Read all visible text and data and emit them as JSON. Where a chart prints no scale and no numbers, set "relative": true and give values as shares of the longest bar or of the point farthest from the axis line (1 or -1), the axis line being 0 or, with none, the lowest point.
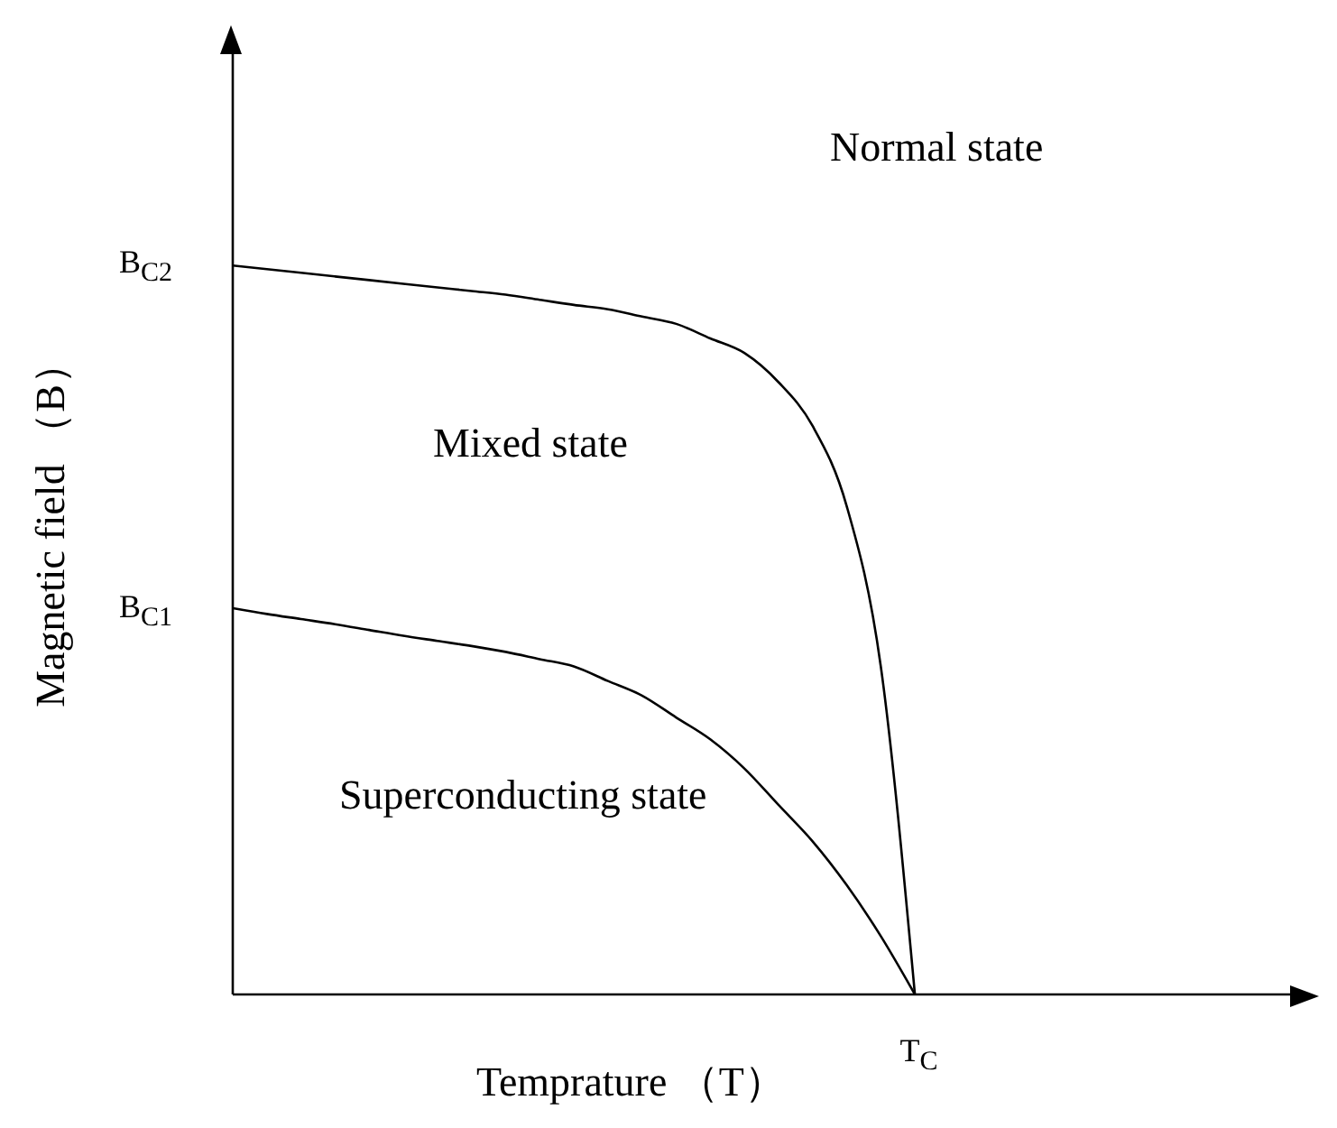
{
  "chart_data": {
    "type": "line",
    "relative": true,
    "xlabel": "Temprature （T）",
    "ylabel": "Magnetic field （B）",
    "categories": [
      null,
      null,
      null,
      null,
      null,
      null,
      null,
      null,
      null,
      null,
      null,
      null,
      null,
      null,
      null,
      null,
      null,
      null,
      null,
      null,
      null,
      null,
      null,
      null,
      null,
      null,
      null,
      null,
      null,
      null,
      null,
      null
    ],
    "series": [
      {
        "color": "#000000",
        "values": [
          1.0,
          0.995,
          0.99,
          0.985,
          0.98,
          0.975,
          0.97,
          0.965,
          0.96,
          0.953,
          0.946,
          0.94,
          0.93,
          0.92,
          0.9,
          0.88,
          0.84,
          0.78,
          0.67,
          0.45,
          0,
          null,
          null,
          null,
          null,
          null,
          null,
          null,
          null,
          null,
          null,
          null
        ]
      },
      {
        "color": "#000000",
        "values": [
          0.53,
          0.522,
          0.515,
          0.508,
          0.5,
          0.492,
          0.485,
          0.478,
          0.47,
          0.46,
          0.45,
          0.43,
          0.41,
          0.38,
          0.35,
          0.31,
          0.26,
          0.21,
          0.15,
          0.08,
          0,
          null,
          null,
          null,
          null,
          null,
          null,
          null,
          null,
          null,
          null,
          null
        ]
      }
    ],
    "annotations": [
      "Normal state",
      "Mixed state",
      "Superconducting state",
      "B$_{C2}$",
      "B$_{C1}$",
      "T$_{C}$"
    ]
  }
}
